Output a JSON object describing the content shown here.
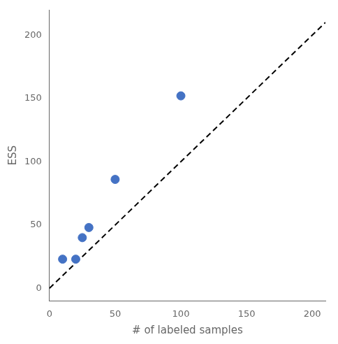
{
  "chart_data": {
    "type": "scatter",
    "xlabel": "# of labeled samples",
    "ylabel": "ESS",
    "series": [
      {
        "type": "scatter",
        "color": "#4472C4",
        "marker": "circle",
        "x": [
          10,
          20,
          25,
          30,
          50,
          100
        ],
        "values": [
          23,
          23,
          40,
          48,
          86,
          152
        ]
      },
      {
        "type": "line",
        "color": "black",
        "line_style": "dashed",
        "x": [
          0,
          210
        ],
        "values": [
          0,
          210
        ]
      }
    ],
    "xlim": [
      0,
      210
    ],
    "ylim": [
      -10,
      220
    ],
    "xticks": [
      0,
      50,
      100,
      150,
      200
    ],
    "yticks": [
      0,
      50,
      100,
      150,
      200
    ],
    "grid": false
  }
}
